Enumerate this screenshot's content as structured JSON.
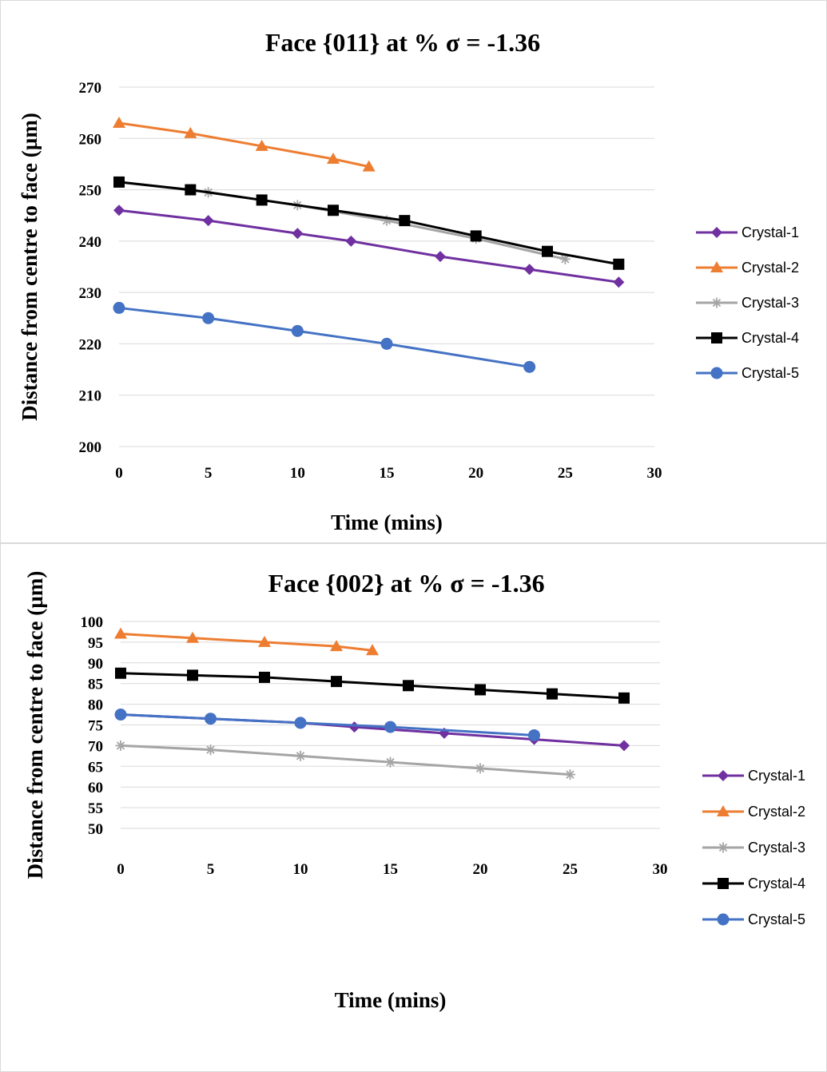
{
  "chart_data": [
    {
      "type": "line",
      "title": "Face {011} at % σ = -1.36",
      "xlabel": "Time (mins)",
      "ylabel": "Distance from centre to face (µm)",
      "xlim": [
        0,
        30
      ],
      "ylim": [
        200,
        270
      ],
      "xticks": [
        0,
        5,
        10,
        15,
        20,
        25,
        30
      ],
      "yticks": [
        200,
        210,
        220,
        230,
        240,
        250,
        260,
        270
      ],
      "grid": "horizontal",
      "legend_position": "right",
      "series": [
        {
          "name": "Crystal-1",
          "color": "#7030a0",
          "marker": "diamond",
          "x": [
            0,
            5,
            10,
            13,
            18,
            23,
            28
          ],
          "y": [
            246,
            244,
            241.5,
            240,
            237,
            234.5,
            232
          ]
        },
        {
          "name": "Crystal-2",
          "color": "#ed7d31",
          "marker": "triangle",
          "x": [
            0,
            4,
            8,
            12,
            14
          ],
          "y": [
            263,
            261,
            258.5,
            256,
            254.5
          ]
        },
        {
          "name": "Crystal-3",
          "color": "#a5a5a5",
          "marker": "star",
          "x": [
            0,
            5,
            10,
            15,
            20,
            25
          ],
          "y": [
            251.5,
            249.5,
            247,
            244,
            240.5,
            236.5
          ]
        },
        {
          "name": "Crystal-4",
          "color": "#000000",
          "marker": "square",
          "x": [
            0,
            4,
            8,
            12,
            16,
            20,
            24,
            28
          ],
          "y": [
            251.5,
            250,
            248,
            246,
            244,
            241,
            238,
            235.5
          ]
        },
        {
          "name": "Crystal-5",
          "color": "#4472c4",
          "marker": "circle",
          "x": [
            0,
            5,
            10,
            15,
            23
          ],
          "y": [
            227,
            225,
            222.5,
            220,
            215.5
          ]
        }
      ]
    },
    {
      "type": "line",
      "title": "Face {002} at % σ = -1.36",
      "xlabel": "Time (mins)",
      "ylabel": "Distance from centre to face (µm)",
      "xlim": [
        0,
        30
      ],
      "ylim": [
        50,
        100
      ],
      "xticks": [
        0,
        5,
        10,
        15,
        20,
        25,
        30
      ],
      "yticks": [
        50,
        55,
        60,
        65,
        70,
        75,
        80,
        85,
        90,
        95,
        100
      ],
      "grid": "horizontal",
      "legend_position": "right",
      "series": [
        {
          "name": "Crystal-1",
          "color": "#7030a0",
          "marker": "diamond",
          "x": [
            0,
            5,
            10,
            13,
            18,
            23,
            28
          ],
          "y": [
            77.5,
            76.5,
            75.5,
            74.5,
            73,
            71.5,
            70
          ]
        },
        {
          "name": "Crystal-2",
          "color": "#ed7d31",
          "marker": "triangle",
          "x": [
            0,
            4,
            8,
            12,
            14
          ],
          "y": [
            97,
            96,
            95,
            94,
            93
          ]
        },
        {
          "name": "Crystal-3",
          "color": "#a5a5a5",
          "marker": "star",
          "x": [
            0,
            5,
            10,
            15,
            20,
            25
          ],
          "y": [
            70,
            69,
            67.5,
            66,
            64.5,
            63
          ]
        },
        {
          "name": "Crystal-4",
          "color": "#000000",
          "marker": "square",
          "x": [
            0,
            4,
            8,
            12,
            16,
            20,
            24,
            28
          ],
          "y": [
            87.5,
            87,
            86.5,
            85.5,
            84.5,
            83.5,
            82.5,
            81.5
          ]
        },
        {
          "name": "Crystal-5",
          "color": "#4472c4",
          "marker": "circle",
          "x": [
            0,
            5,
            10,
            15,
            23
          ],
          "y": [
            77.5,
            76.5,
            75.5,
            74.5,
            72.5
          ]
        }
      ]
    }
  ]
}
